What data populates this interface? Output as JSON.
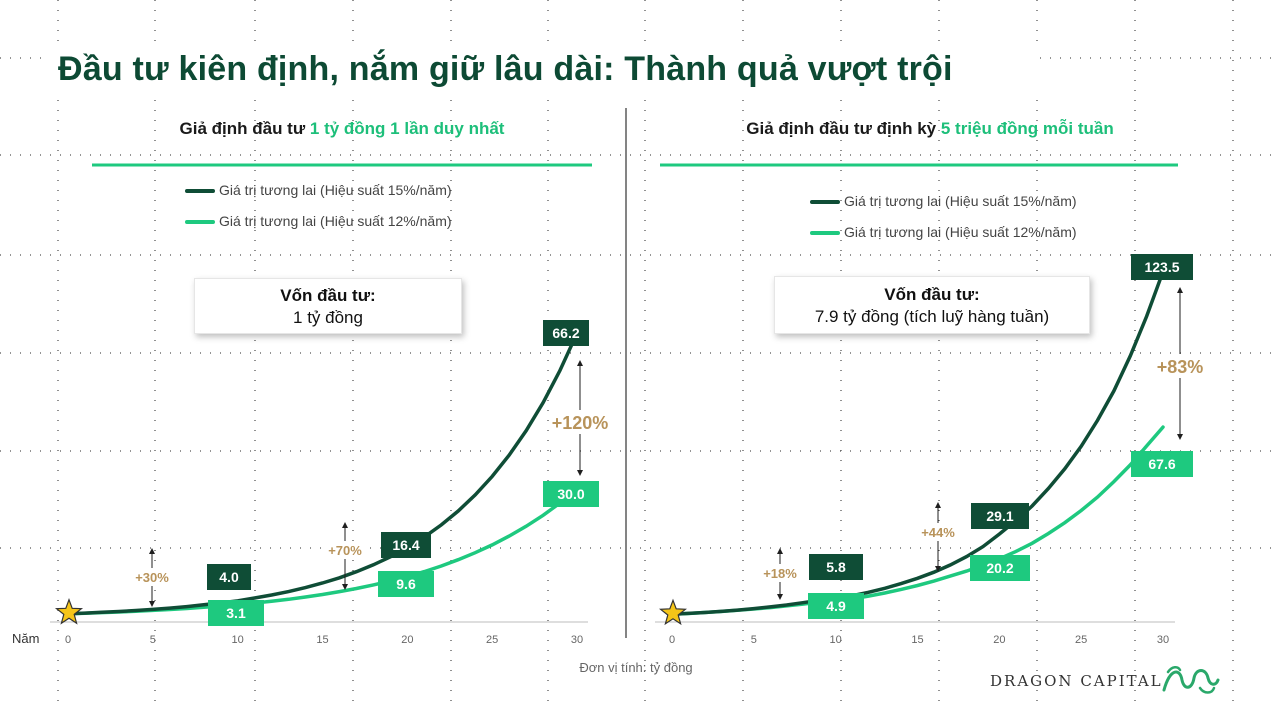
{
  "title": "Đầu tư kiên định, nắm giữ lâu dài: Thành quả vượt trội",
  "unit_note": "Đơn vị tính: tỷ đồng",
  "brand": "DRAGON CAPITAL",
  "year_label": "Năm",
  "panels": [
    {
      "title_prefix": "Giả định đầu tư ",
      "title_highlight": "1 tỷ đồng 1 lần duy nhất",
      "capital_label": "Vốn đầu tư:",
      "capital_value": "1 tỷ đồng"
    },
    {
      "title_prefix": "Giả định đầu tư định kỳ ",
      "title_highlight": "5 triệu đồng mỗi tuần",
      "capital_label": "Vốn đầu tư:",
      "capital_value": "7.9 tỷ đồng (tích luỹ hàng tuần)"
    }
  ],
  "colors": {
    "dark_green": "#0f4d36",
    "light_green": "#1ec97f",
    "gold": "#b8935a",
    "title_green": "#0d4a34"
  },
  "chart_data": [
    {
      "type": "line",
      "x": [
        0,
        5,
        10,
        15,
        20,
        25,
        30
      ],
      "xlim": [
        0,
        30
      ],
      "series": [
        {
          "name": "Giá trị tương lai (Hiệu suất 15%/năm)",
          "color": "#0f4d36",
          "x": [
            0,
            1,
            2,
            3,
            4,
            5,
            6,
            7,
            8,
            9,
            10,
            11,
            12,
            13,
            14,
            15,
            16,
            17,
            18,
            19,
            20,
            21,
            22,
            23,
            24,
            25,
            26,
            27,
            28,
            29,
            30
          ],
          "values": [
            1.0,
            1.15,
            1.32,
            1.52,
            1.75,
            2.01,
            2.31,
            2.66,
            3.06,
            3.52,
            4.0,
            4.65,
            5.35,
            6.15,
            7.08,
            8.14,
            9.36,
            10.76,
            12.38,
            14.23,
            16.4,
            18.82,
            21.64,
            24.89,
            28.63,
            32.92,
            37.86,
            43.54,
            50.07,
            57.58,
            66.2
          ]
        },
        {
          "name": "Giá trị tương lai (Hiệu suất 12%/năm)",
          "color": "#1ec97f",
          "x": [
            0,
            1,
            2,
            3,
            4,
            5,
            6,
            7,
            8,
            9,
            10,
            11,
            12,
            13,
            14,
            15,
            16,
            17,
            18,
            19,
            20,
            21,
            22,
            23,
            24,
            25,
            26,
            27,
            28,
            29,
            30
          ],
          "values": [
            1.0,
            1.12,
            1.25,
            1.4,
            1.57,
            1.76,
            1.97,
            2.21,
            2.48,
            2.77,
            3.1,
            3.48,
            3.9,
            4.36,
            4.89,
            5.47,
            6.13,
            6.87,
            7.69,
            8.61,
            9.6,
            10.8,
            12.1,
            13.55,
            15.18,
            17.0,
            19.04,
            21.32,
            23.88,
            26.75,
            30.0
          ]
        }
      ],
      "labels": [
        {
          "x": 10,
          "series": 0,
          "text": "4.0"
        },
        {
          "x": 10,
          "series": 1,
          "text": "3.1"
        },
        {
          "x": 20,
          "series": 0,
          "text": "16.4"
        },
        {
          "x": 20,
          "series": 1,
          "text": "9.6"
        },
        {
          "x": 30,
          "series": 0,
          "text": "66.2"
        },
        {
          "x": 30,
          "series": 1,
          "text": "30.0"
        }
      ],
      "diffs": [
        {
          "x": 5,
          "text": "+30%"
        },
        {
          "x": 17,
          "text": "+70%"
        },
        {
          "x": 30,
          "text": "+120%"
        }
      ],
      "xtick_labels": [
        "0",
        "5",
        "10",
        "15",
        "20",
        "25",
        "30"
      ]
    },
    {
      "type": "line",
      "x": [
        0,
        5,
        10,
        15,
        20,
        25,
        30
      ],
      "xlim": [
        0,
        30
      ],
      "series": [
        {
          "name": "Giá trị tương lai (Hiệu suất 15%/năm)",
          "color": "#0f4d36",
          "x": [
            0,
            1,
            2,
            3,
            4,
            5,
            6,
            7,
            8,
            9,
            10,
            11,
            12,
            13,
            14,
            15,
            16,
            17,
            18,
            19,
            20,
            21,
            22,
            23,
            24,
            25,
            26,
            27,
            28,
            29,
            30
          ],
          "values": [
            0.26,
            0.56,
            0.91,
            1.31,
            1.77,
            2.3,
            2.91,
            3.61,
            4.42,
            5.34,
            5.8,
            6.95,
            8.15,
            9.6,
            11.3,
            13.2,
            15.4,
            18.0,
            21.0,
            24.6,
            29.1,
            33.9,
            39.2,
            45.5,
            52.6,
            60.7,
            70.0,
            80.6,
            93.2,
            107.4,
            123.5
          ]
        },
        {
          "name": "Giá trị tương lai (Hiệu suất 12%/năm)",
          "color": "#1ec97f",
          "x": [
            0,
            1,
            2,
            3,
            4,
            5,
            6,
            7,
            8,
            9,
            10,
            11,
            12,
            13,
            14,
            15,
            16,
            17,
            18,
            19,
            20,
            21,
            22,
            23,
            24,
            25,
            26,
            27,
            28,
            29,
            30
          ],
          "values": [
            0.26,
            0.55,
            0.89,
            1.26,
            1.68,
            2.15,
            2.67,
            3.26,
            3.92,
            4.66,
            4.9,
            5.8,
            6.8,
            7.9,
            9.2,
            10.6,
            12.2,
            14.0,
            15.8,
            17.9,
            20.2,
            22.8,
            25.8,
            29.3,
            33.2,
            37.6,
            42.4,
            48.0,
            54.0,
            60.8,
            67.6
          ]
        }
      ],
      "labels": [
        {
          "x": 10,
          "series": 0,
          "text": "5.8"
        },
        {
          "x": 10,
          "series": 1,
          "text": "4.9"
        },
        {
          "x": 20,
          "series": 0,
          "text": "29.1"
        },
        {
          "x": 20,
          "series": 1,
          "text": "20.2"
        },
        {
          "x": 30,
          "series": 0,
          "text": "123.5"
        },
        {
          "x": 30,
          "series": 1,
          "text": "67.6"
        }
      ],
      "diffs": [
        {
          "x": 7,
          "text": "+18%"
        },
        {
          "x": 17,
          "text": "+44%"
        },
        {
          "x": 30,
          "text": "+83%"
        }
      ],
      "xtick_labels": [
        "0",
        "5",
        "10",
        "15",
        "20",
        "25",
        "30"
      ]
    }
  ]
}
